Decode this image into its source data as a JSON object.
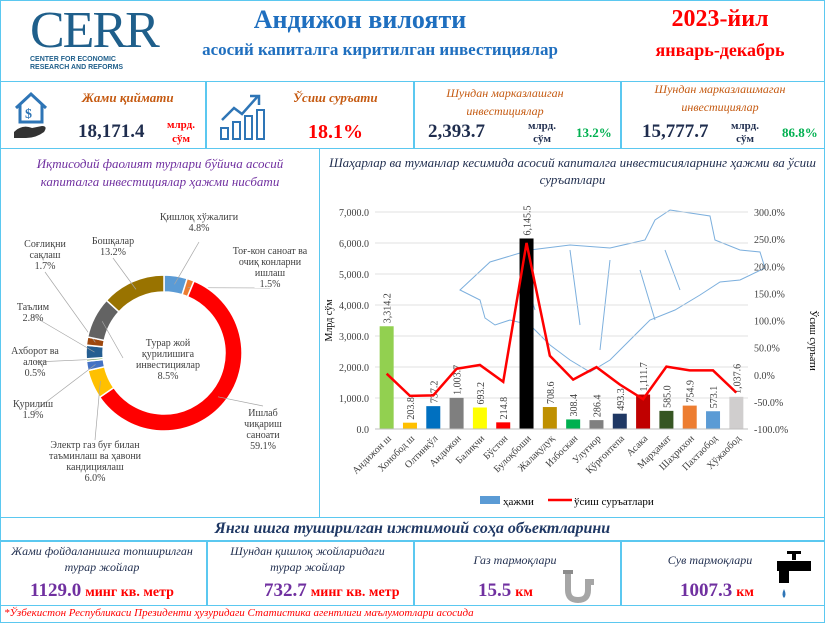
{
  "header": {
    "logo_text": "CERR",
    "logo_subtitle": "CENTER FOR ECONOMIC RESEARCH AND REFORMS",
    "title": "Андижон вилояти",
    "subtitle": "асосий капиталга киритилган инвестициялар",
    "year": "2023-йил",
    "period": "январь-декабрь"
  },
  "kpis": {
    "total": {
      "label": "Жами қиймати",
      "value": "18,171.4",
      "unit": "млрд. сўм",
      "icon": "money-house-hand-icon"
    },
    "growth": {
      "label": "Ўсиш суръати",
      "value": "18.1%",
      "icon": "growth-chart-icon"
    },
    "centralized": {
      "label": "Шундан марказлашган инвестициялар",
      "value": "2,393.7",
      "unit": "млрд. сўм",
      "share": "13.2%"
    },
    "decentralized": {
      "label": "Шундан марказлашмаган инвестициялар",
      "value": "15,777.7",
      "unit": "млрд. сўм",
      "share": "86.8%"
    }
  },
  "colors": {
    "border": "#5bc8f0",
    "title_blue": "#1f6fbf",
    "red": "#ff0000",
    "orange_label": "#c55a11",
    "green": "#00b050",
    "purple": "#7030a0"
  },
  "chart_data": [
    {
      "type": "pie",
      "subtype": "donut",
      "title": "Иқтисодий фаолият турлари бўйича асосий капиталга инвестициялар ҳажми нисбати",
      "slices": [
        {
          "label": "Қишлоқ хўжалиги",
          "value": 4.8,
          "text": "4.8%",
          "color": "#5b9bd5"
        },
        {
          "label": "Тоғ-кон саноат ва очиқ конларни ишлаш",
          "value": 1.5,
          "text": "1.5%",
          "color": "#ed7d31"
        },
        {
          "label": "Ишлаб чиқариш саноати",
          "value": 59.1,
          "text": "59.1%",
          "color": "#ff0000"
        },
        {
          "label": "Электр газ буғ билан таъминлаш ва ҳавони кандициялаш",
          "value": 6.0,
          "text": "6.0%",
          "color": "#ffc000"
        },
        {
          "label": "Қурилиш",
          "value": 1.9,
          "text": "1.9%",
          "color": "#4472c4"
        },
        {
          "label": "Ахборот ва алоқа",
          "value": 0.5,
          "text": "0.5%",
          "color": "#70ad47"
        },
        {
          "label": "Таълим",
          "value": 2.8,
          "text": "2.8%",
          "color": "#255e91"
        },
        {
          "label": "Соғлиқни сақлаш",
          "value": 1.7,
          "text": "1.7%",
          "color": "#9e480e"
        },
        {
          "label": "Турар жой қурилишига инвестициялар",
          "value": 8.5,
          "text": "8.5%",
          "color": "#636363"
        },
        {
          "label": "Бошқалар",
          "value": 13.2,
          "text": "13.2%",
          "color": "#997300"
        }
      ]
    },
    {
      "type": "bar",
      "title": "Шаҳарлар ва туманлар кесимида асосий капиталга инвестисияларнинг ҳажми ва ўсиш суръатлари",
      "ylabel": "Млрд сўм",
      "y2label": "Ўсиш суръати",
      "ylim": [
        0,
        7000
      ],
      "yticks": [
        "0.0",
        "1,000.0",
        "2,000.0",
        "3,000.0",
        "4,000.0",
        "5,000.0",
        "6,000.0",
        "7,000.0"
      ],
      "y2lim": [
        -100,
        300
      ],
      "y2ticks": [
        "-100.0%",
        "-50.0%",
        "0.0%",
        "50.0%",
        "100.0%",
        "150.0%",
        "200.0%",
        "250.0%",
        "300.0%"
      ],
      "grid": true,
      "legend_position": "bottom",
      "categories": [
        "Андижон ш",
        "Хонобод ш",
        "Олтинкўл",
        "Андижон",
        "Балиқчи",
        "Бўстон",
        "Булоқбоши",
        "Жалақудуқ",
        "Избоскан",
        "Улуғнор",
        "Қўрғонтепа",
        "Асака",
        "Марҳамат",
        "Шаҳрихон",
        "Пахтаобод",
        "Хўжаобод"
      ],
      "series": [
        {
          "name": "ҳажми",
          "type": "bar",
          "values": [
            3314.2,
            203.8,
            737.2,
            1003.7,
            693.2,
            214.8,
            6145.5,
            708.6,
            308.4,
            286.4,
            493.3,
            1111.7,
            585.0,
            754.9,
            573.1,
            1037.6
          ],
          "labels": [
            "3,314.2",
            "203.8",
            "737.2",
            "1,003.7",
            "693.2",
            "214.8",
            "6,145.5",
            "708.6",
            "308.4",
            "286.4",
            "493.3",
            "1,111.7",
            "585.0",
            "754.9",
            "573.1",
            "1,037.6"
          ],
          "colors": [
            "#92d050",
            "#ffc000",
            "#0070c0",
            "#7f7f7f",
            "#ffff00",
            "#ff0000",
            "#000000",
            "#bf9000",
            "#00b050",
            "#808080",
            "#1f3864",
            "#c00000",
            "#375623",
            "#ed7d31",
            "#5b9bd5",
            "#d0cece"
          ],
          "legend_color": "#5b9bd5"
        },
        {
          "name": "ўсиш суръатлари",
          "type": "line",
          "axis": "right",
          "color": "#ff0000",
          "values": [
            2,
            -39,
            -38,
            11,
            18,
            -13,
            243,
            35,
            -9,
            14,
            -18,
            -45,
            15,
            8,
            8,
            -33
          ]
        }
      ]
    }
  ],
  "social": {
    "title": "Янги ишга туширилган ижтимоий соҳа объектларини",
    "items": [
      {
        "label": "Жами фойдаланишга топширилган турар жойлар",
        "value": "1129.0",
        "unit": "минг кв. метр"
      },
      {
        "label": "Шундан қишлоқ жойларидаги турар жойлар",
        "value": "732.7",
        "unit": "минг кв. метр"
      },
      {
        "label": "Газ тармоқлари",
        "value": "15.5",
        "unit": "км",
        "icon": "gas-pipe-icon"
      },
      {
        "label": "Сув тармоқлари",
        "value": "1007.3",
        "unit": "км",
        "icon": "water-tap-icon"
      }
    ]
  },
  "footer": "*Ўзбекистон Республикаси Президенти ҳузуридаги Статистика агентлиги маълумотлари асосида"
}
